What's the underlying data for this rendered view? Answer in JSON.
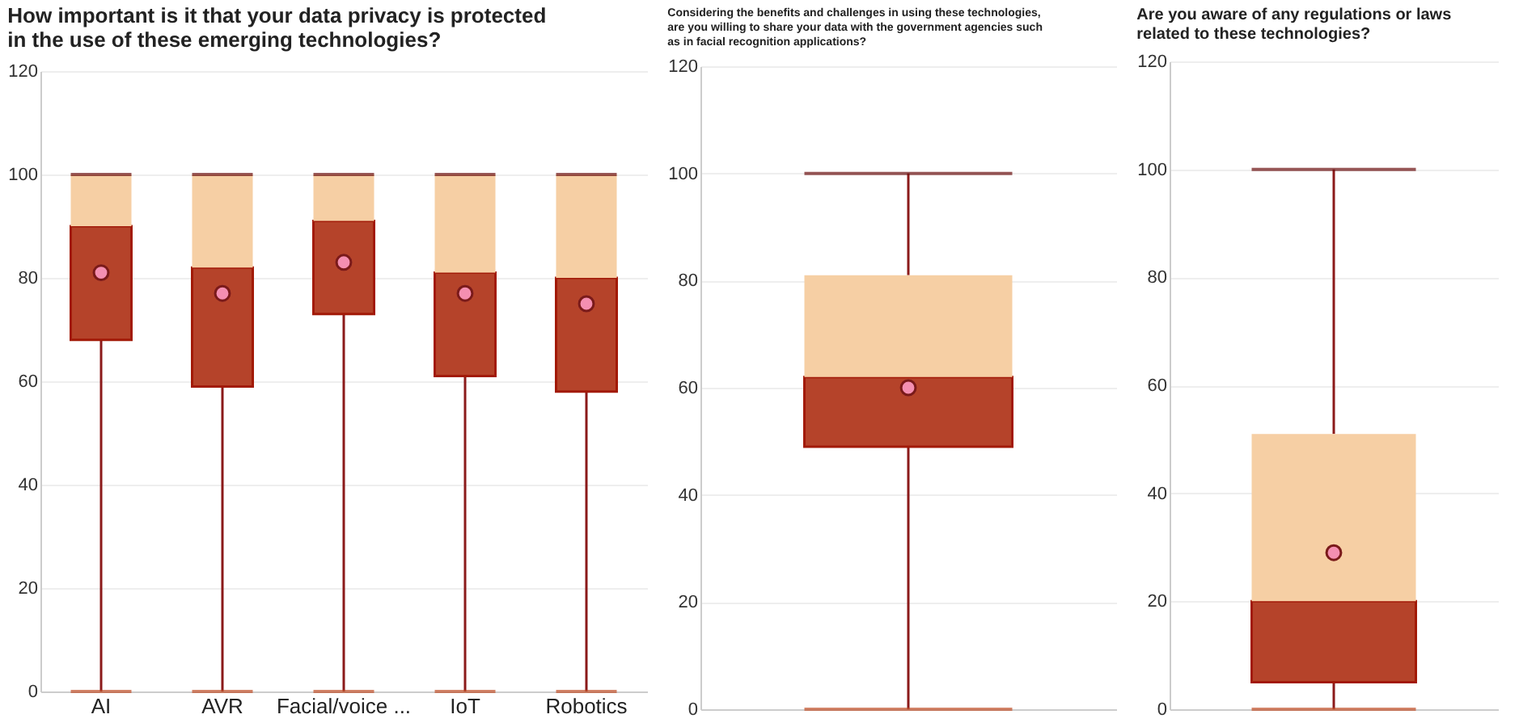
{
  "chart_data": [
    {
      "type": "box",
      "title": "How important is it that your data privacy is protected in the use of these emerging technologies?",
      "categories": [
        "AI",
        "AVR",
        "Facial/voice ...",
        "IoT",
        "Robotics"
      ],
      "ylim": [
        0,
        120
      ],
      "yticks": [
        0,
        20,
        40,
        60,
        80,
        100,
        120
      ],
      "grid": "y",
      "boxes": [
        {
          "low": 0,
          "q1": 68,
          "median": 90,
          "q3": 100,
          "high": 100,
          "mean": 81
        },
        {
          "low": 0,
          "q1": 59,
          "median": 82,
          "q3": 100,
          "high": 100,
          "mean": 77
        },
        {
          "low": 0,
          "q1": 73,
          "median": 91,
          "q3": 100,
          "high": 100,
          "mean": 83
        },
        {
          "low": 0,
          "q1": 61,
          "median": 81,
          "q3": 100,
          "high": 100,
          "mean": 77
        },
        {
          "low": 0,
          "q1": 58,
          "median": 80,
          "q3": 100,
          "high": 100,
          "mean": 75
        }
      ]
    },
    {
      "type": "box",
      "title": "Considering the benefits and challenges in using these technologies, are you willing to share your data with the government agencies such as in facial recognition applications?",
      "categories": [
        null
      ],
      "ylim": [
        0,
        120
      ],
      "yticks": [
        0,
        20,
        40,
        60,
        80,
        100,
        120
      ],
      "grid": "y",
      "boxes": [
        {
          "low": 0,
          "q1": 49,
          "median": 62,
          "q3": 81,
          "high": 100,
          "mean": 60
        }
      ]
    },
    {
      "type": "box",
      "title": "Are you aware of any regulations or laws related to these technologies?",
      "categories": [
        null
      ],
      "ylim": [
        0,
        120
      ],
      "yticks": [
        0,
        20,
        40,
        60,
        80,
        100,
        120
      ],
      "grid": "y",
      "boxes": [
        {
          "low": 0,
          "q1": 5,
          "median": 20,
          "q3": 51,
          "high": 100,
          "mean": 29
        }
      ]
    }
  ]
}
